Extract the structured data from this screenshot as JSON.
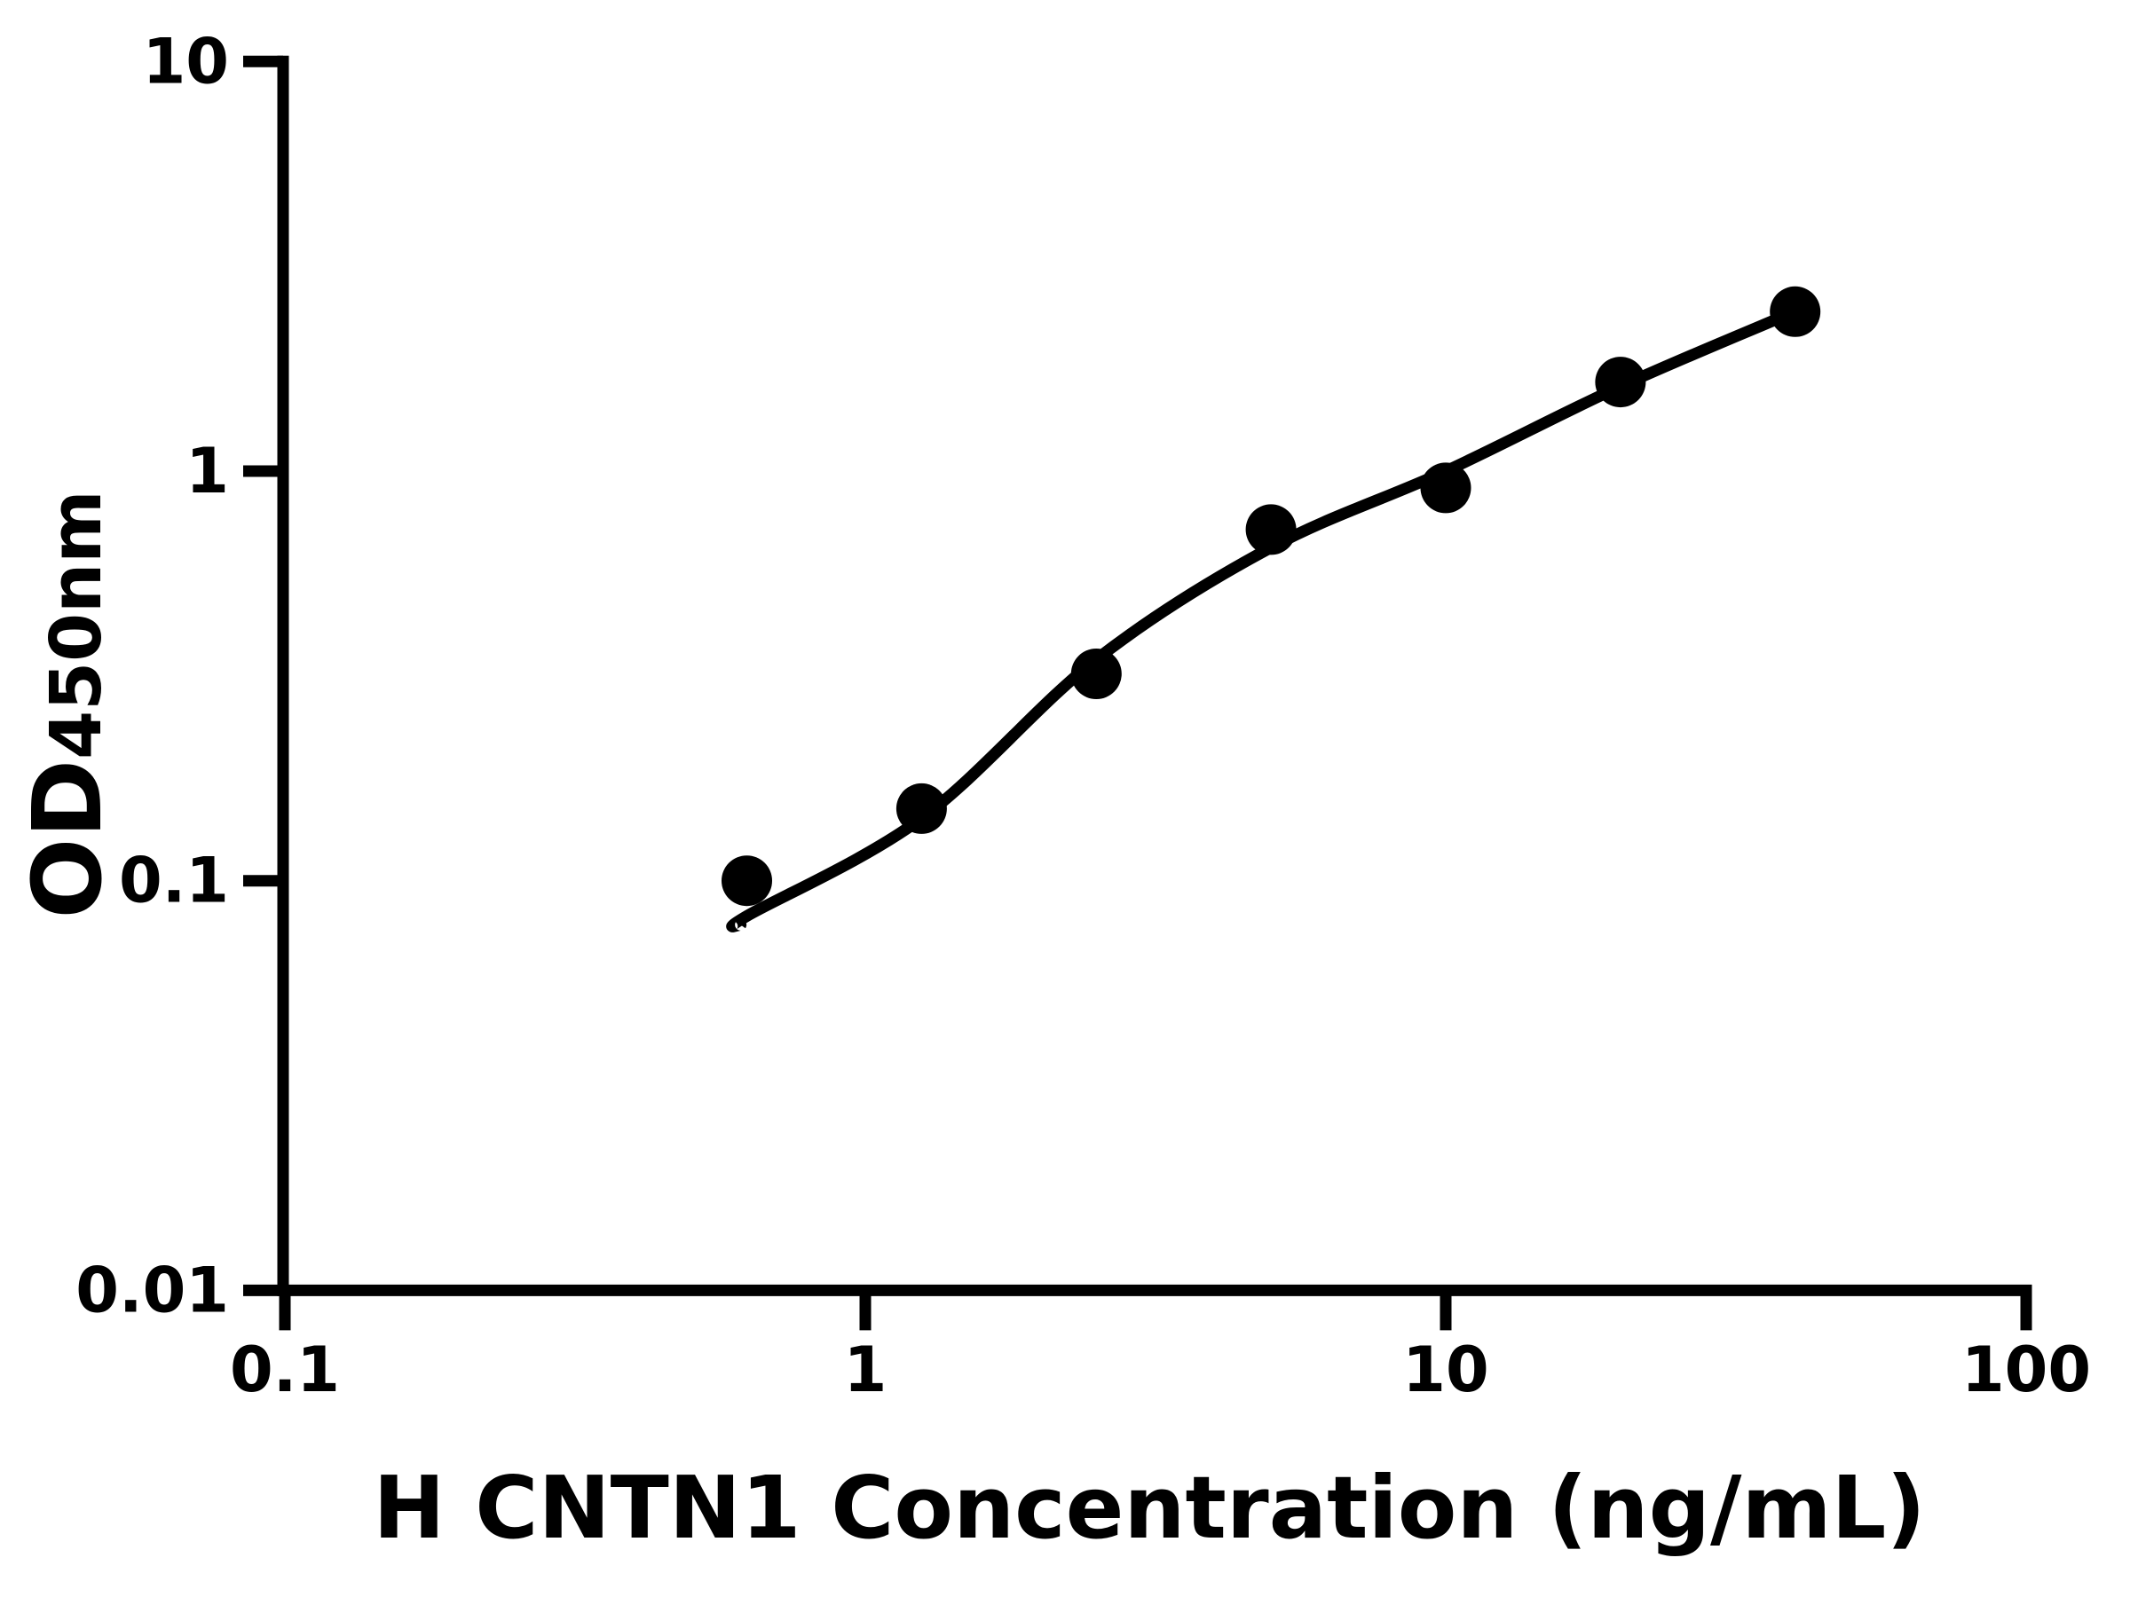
{
  "chart_data": {
    "type": "scatter",
    "title": "",
    "xlabel": "H CNTN1 Concentration (ng/mL)",
    "ylabel": "OD450nm",
    "ylabel_main": "OD",
    "ylabel_sub": "450nm",
    "x_scale": "log",
    "y_scale": "log",
    "xlim": [
      0.1,
      100
    ],
    "ylim": [
      0.01,
      10
    ],
    "grid": false,
    "legend": false,
    "x_ticks": [
      {
        "value": 0.1,
        "label": "0.1"
      },
      {
        "value": 1,
        "label": "1"
      },
      {
        "value": 10,
        "label": "10"
      },
      {
        "value": 100,
        "label": "100"
      }
    ],
    "y_ticks": [
      {
        "value": 0.01,
        "label": "0.01"
      },
      {
        "value": 0.1,
        "label": "0.1"
      },
      {
        "value": 1,
        "label": "1"
      },
      {
        "value": 10,
        "label": "10"
      }
    ],
    "series": [
      {
        "name": "standard-points",
        "type": "scatter",
        "x": [
          0.625,
          1.25,
          2.5,
          5,
          10,
          20,
          40
        ],
        "y": [
          0.1,
          0.15,
          0.32,
          0.72,
          0.91,
          1.65,
          2.45
        ]
      },
      {
        "name": "fitted-curve",
        "type": "line",
        "x": [
          0.61,
          0.625,
          1.25,
          2.5,
          5,
          10,
          20,
          40
        ],
        "y": [
          0.078,
          0.082,
          0.142,
          0.347,
          0.651,
          1.0,
          1.61,
          2.454
        ]
      }
    ],
    "colors": {
      "foreground": "#000000",
      "background": "#ffffff"
    }
  }
}
